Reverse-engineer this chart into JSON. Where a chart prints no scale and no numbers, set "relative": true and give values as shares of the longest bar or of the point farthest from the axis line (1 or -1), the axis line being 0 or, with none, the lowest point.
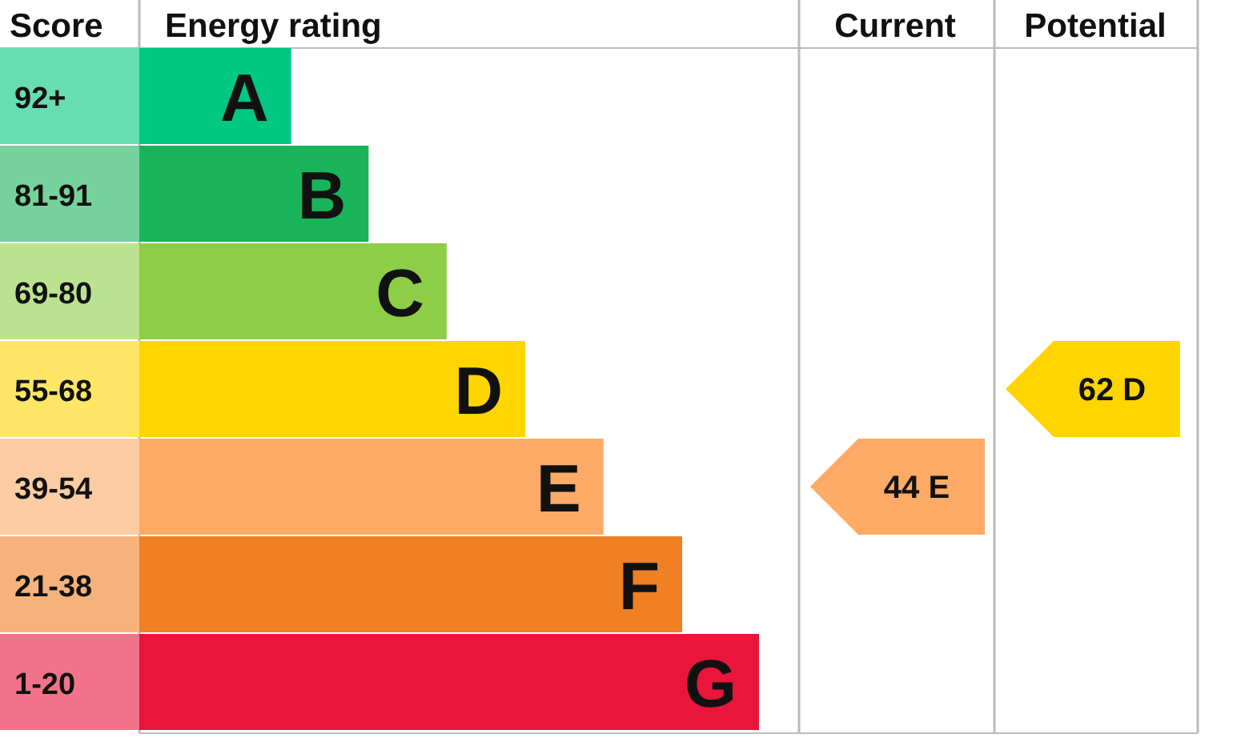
{
  "chart_data": {
    "type": "bar",
    "orientation": "horizontal",
    "relative": true,
    "categories": [
      "A",
      "B",
      "C",
      "D",
      "E",
      "F",
      "G"
    ],
    "values": [
      0.245,
      0.37,
      0.496,
      0.623,
      0.749,
      0.876,
      1
    ],
    "colors": [
      "#00c781",
      "#19b459",
      "#8dce46",
      "#ffd500",
      "#fcaa65",
      "#ef8023",
      "#e9153b"
    ],
    "annotations": [
      "Score",
      "Energy rating",
      "Current",
      "Potential",
      "92+",
      "81-91",
      "69-80",
      "55-68",
      "39-54",
      "21-38",
      "1-20",
      "44 E",
      "62 D"
    ]
  }
}
